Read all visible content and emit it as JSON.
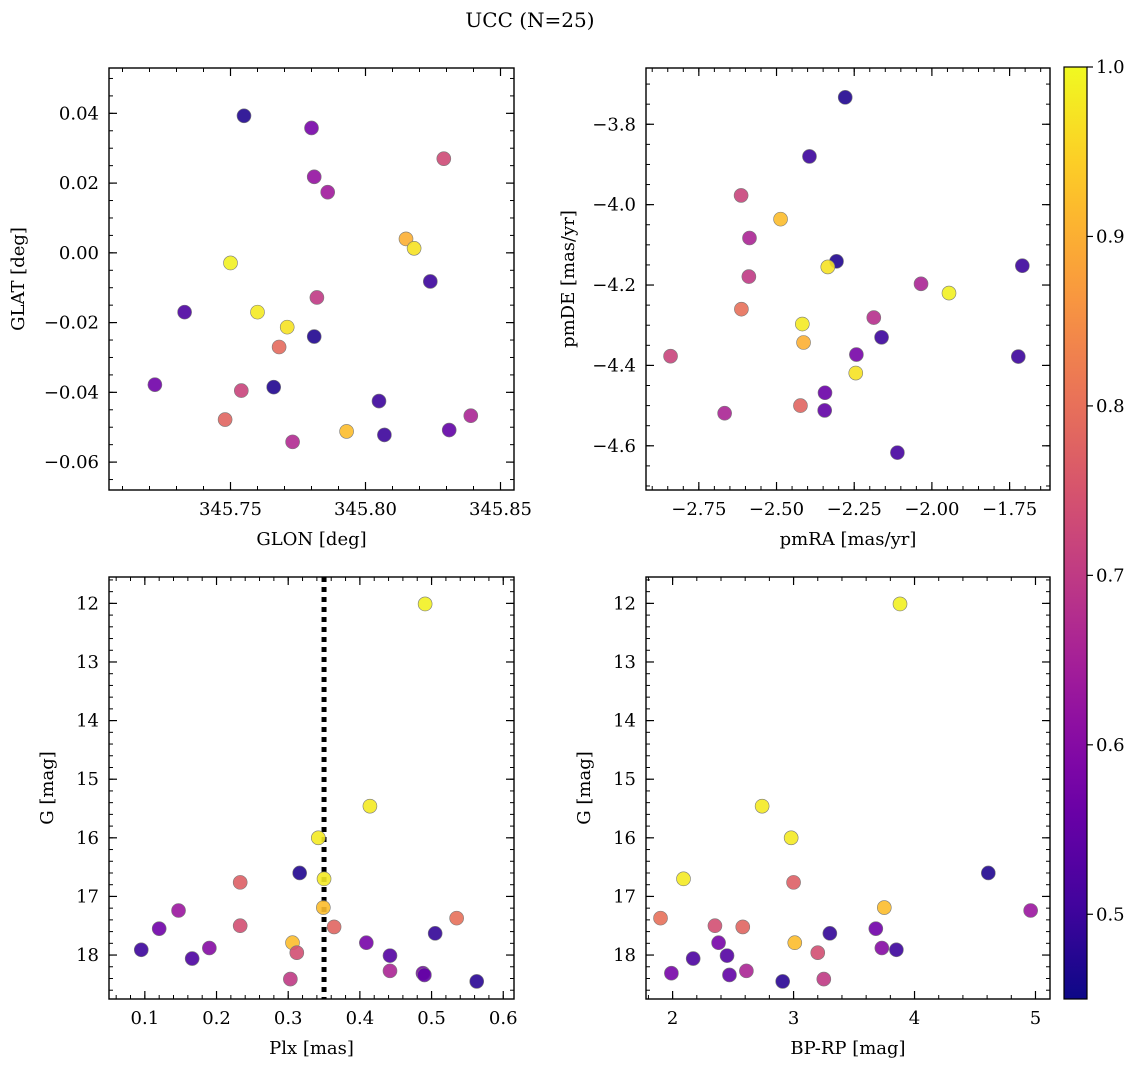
{
  "figure": {
    "title": "UCC (N=25)",
    "colorbar": {
      "range": [
        0.45,
        1.0
      ],
      "ticks": [
        0.5,
        0.6,
        0.7,
        0.8,
        0.9,
        1.0
      ],
      "tick_labels": [
        "0.5",
        "0.6",
        "0.7",
        "0.8",
        "0.9",
        "1.0"
      ],
      "colormap": "plasma"
    }
  },
  "chart_data": [
    {
      "type": "scatter",
      "panel": "top-left",
      "xlabel": "GLON [deg]",
      "ylabel": "GLAT [deg]",
      "xlim": [
        345.705,
        345.855
      ],
      "ylim": [
        -0.068,
        0.053
      ],
      "xticks": [
        345.75,
        345.8,
        345.85
      ],
      "xtick_labels": [
        "345.75",
        "345.80",
        "345.85"
      ],
      "yticks": [
        -0.06,
        -0.04,
        -0.02,
        0.0,
        0.02,
        0.04
      ],
      "ytick_labels": [
        "−0.06",
        "−0.04",
        "−0.02",
        "0.00",
        "0.02",
        "0.04"
      ],
      "x": [
        345.755,
        345.78,
        345.781,
        345.786,
        345.829,
        345.815,
        345.818,
        345.75,
        345.824,
        345.782,
        345.733,
        345.76,
        345.771,
        345.781,
        345.768,
        345.722,
        345.754,
        345.766,
        345.805,
        345.748,
        345.807,
        345.831,
        345.839,
        345.773,
        345.793
      ],
      "y": [
        0.0393,
        0.0358,
        0.0218,
        0.0174,
        0.027,
        0.004,
        0.0013,
        -0.0029,
        -0.0082,
        -0.0128,
        -0.017,
        -0.017,
        -0.0213,
        -0.024,
        -0.027,
        -0.0378,
        -0.0395,
        -0.0385,
        -0.0425,
        -0.0478,
        -0.0522,
        -0.0508,
        -0.0467,
        -0.0542,
        -0.0512
      ],
      "c": [
        0.47,
        0.58,
        0.62,
        0.64,
        0.73,
        0.9,
        0.97,
        0.99,
        0.5,
        0.7,
        0.52,
        0.98,
        0.97,
        0.47,
        0.79,
        0.57,
        0.72,
        0.47,
        0.5,
        0.78,
        0.5,
        0.55,
        0.66,
        0.67,
        0.92
      ]
    },
    {
      "type": "scatter",
      "panel": "top-right",
      "xlabel": "pmRA [mas/yr]",
      "ylabel": "pmDE [mas/yr]",
      "xlim": [
        -2.92,
        -1.62
      ],
      "ylim": [
        -4.71,
        -3.66
      ],
      "xticks": [
        -2.75,
        -2.5,
        -2.25,
        -2.0,
        -1.75
      ],
      "xtick_labels": [
        "−2.75",
        "−2.50",
        "−2.25",
        "−2.00",
        "−1.75"
      ],
      "yticks": [
        -4.6,
        -4.4,
        -4.2,
        -4.0,
        -3.8
      ],
      "ytick_labels": [
        "−4.6",
        "−4.4",
        "−4.2",
        "−4.0",
        "−3.8"
      ],
      "x": [
        -2.279,
        -2.394,
        -2.614,
        -2.487,
        -2.587,
        -2.589,
        -2.307,
        -2.335,
        -1.709,
        -2.035,
        -1.945,
        -2.613,
        -2.417,
        -2.187,
        -2.413,
        -2.162,
        -2.841,
        -2.243,
        -1.722,
        -2.245,
        -2.344,
        -2.667,
        -2.423,
        -2.345,
        -2.111
      ],
      "y": [
        -3.733,
        -3.88,
        -3.977,
        -4.036,
        -4.083,
        -4.179,
        -4.141,
        -4.155,
        -4.152,
        -4.197,
        -4.22,
        -4.26,
        -4.297,
        -4.281,
        -4.343,
        -4.33,
        -4.377,
        -4.373,
        -4.378,
        -4.419,
        -4.468,
        -4.519,
        -4.5,
        -4.512,
        -4.617
      ],
      "c": [
        0.47,
        0.5,
        0.72,
        0.92,
        0.66,
        0.7,
        0.47,
        0.97,
        0.5,
        0.66,
        0.99,
        0.8,
        0.98,
        0.68,
        0.9,
        0.5,
        0.72,
        0.58,
        0.5,
        0.97,
        0.56,
        0.66,
        0.78,
        0.55,
        0.51
      ]
    },
    {
      "type": "scatter",
      "panel": "bottom-left",
      "xlabel": "Plx [mas]",
      "ylabel": "G [mag]",
      "xlim": [
        0.05,
        0.615
      ],
      "ylim": [
        18.75,
        11.55
      ],
      "xticks": [
        0.1,
        0.2,
        0.3,
        0.4,
        0.5,
        0.6
      ],
      "xtick_labels": [
        "0.1",
        "0.2",
        "0.3",
        "0.4",
        "0.5",
        "0.6"
      ],
      "yticks": [
        12,
        13,
        14,
        15,
        16,
        17,
        18
      ],
      "ytick_labels": [
        "12",
        "13",
        "14",
        "15",
        "16",
        "17",
        "18"
      ],
      "vline": 0.35,
      "x": [
        0.491,
        0.414,
        0.342,
        0.316,
        0.35,
        0.233,
        0.349,
        0.147,
        0.535,
        0.12,
        0.233,
        0.364,
        0.505,
        0.306,
        0.409,
        0.19,
        0.312,
        0.095,
        0.442,
        0.166,
        0.442,
        0.488,
        0.49,
        0.303,
        0.563
      ],
      "y": [
        12.01,
        15.46,
        16.0,
        16.6,
        16.7,
        16.76,
        17.19,
        17.24,
        17.37,
        17.55,
        17.5,
        17.52,
        17.63,
        17.79,
        17.79,
        17.88,
        17.96,
        17.91,
        18.01,
        18.06,
        18.27,
        18.31,
        18.34,
        18.41,
        18.45
      ],
      "c": [
        0.99,
        0.98,
        0.98,
        0.47,
        0.98,
        0.77,
        0.92,
        0.63,
        0.8,
        0.57,
        0.74,
        0.78,
        0.49,
        0.92,
        0.58,
        0.6,
        0.74,
        0.5,
        0.53,
        0.52,
        0.66,
        0.58,
        0.55,
        0.7,
        0.48
      ]
    },
    {
      "type": "scatter",
      "panel": "bottom-right",
      "xlabel": "BP-RP [mag]",
      "ylabel": "G [mag]",
      "xlim": [
        1.78,
        5.12
      ],
      "ylim": [
        18.75,
        11.55
      ],
      "xticks": [
        2,
        3,
        4,
        5
      ],
      "xtick_labels": [
        "2",
        "3",
        "4",
        "5"
      ],
      "yticks": [
        12,
        13,
        14,
        15,
        16,
        17,
        18
      ],
      "ytick_labels": [
        "12",
        "13",
        "14",
        "15",
        "16",
        "17",
        "18"
      ],
      "x": [
        3.88,
        2.74,
        2.98,
        4.61,
        2.09,
        3.0,
        3.75,
        4.96,
        1.9,
        3.68,
        2.35,
        2.58,
        3.3,
        3.01,
        2.38,
        3.73,
        3.2,
        3.85,
        2.45,
        2.17,
        2.61,
        1.99,
        2.47,
        3.25,
        2.91
      ],
      "y": [
        12.01,
        15.46,
        16.0,
        16.6,
        16.7,
        16.76,
        17.19,
        17.24,
        17.37,
        17.55,
        17.5,
        17.52,
        17.63,
        17.79,
        17.79,
        17.88,
        17.96,
        17.91,
        18.01,
        18.06,
        18.27,
        18.31,
        18.34,
        18.41,
        18.45
      ],
      "c": [
        0.99,
        0.98,
        0.98,
        0.47,
        0.98,
        0.77,
        0.92,
        0.63,
        0.8,
        0.57,
        0.74,
        0.78,
        0.49,
        0.92,
        0.58,
        0.6,
        0.74,
        0.5,
        0.53,
        0.52,
        0.66,
        0.58,
        0.55,
        0.7,
        0.48
      ]
    }
  ]
}
